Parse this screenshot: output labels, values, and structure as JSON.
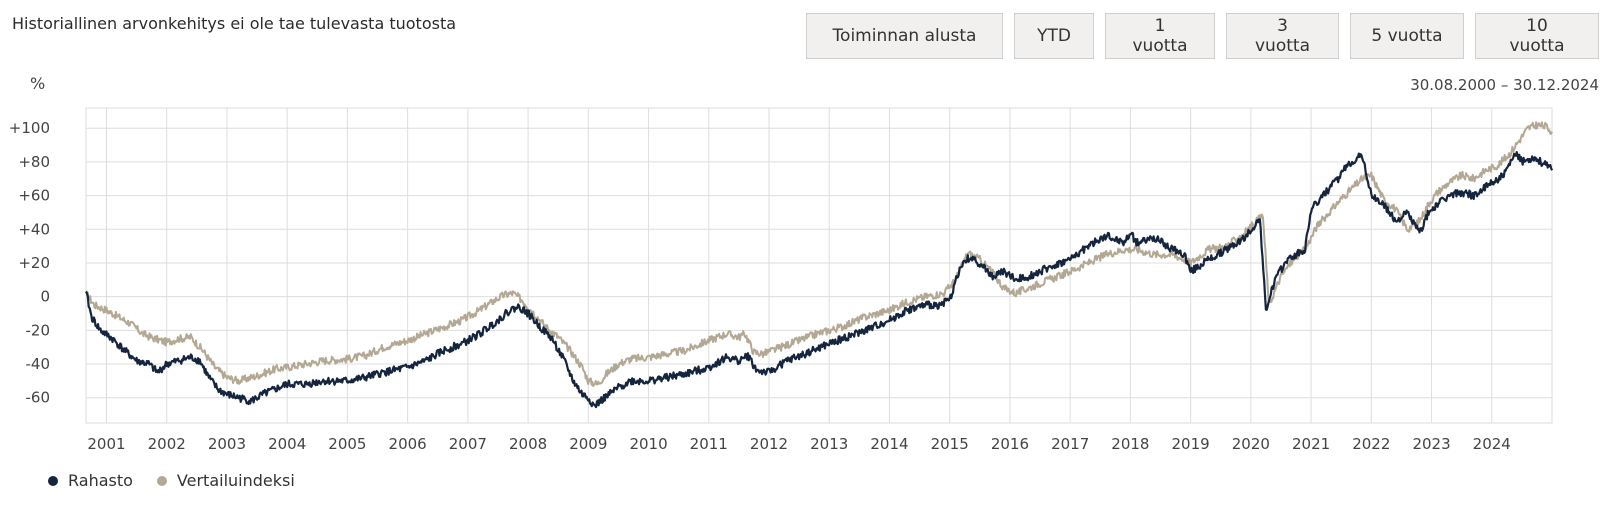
{
  "header": {
    "disclaimer": "Historiallinen arvonkehitys ei ole tae tulevasta tuotosta",
    "range_buttons": [
      "Toiminnan alusta",
      "YTD",
      "1 vuotta",
      "3 vuotta",
      "5 vuotta",
      "10 vuotta"
    ],
    "unit": "%",
    "date_range": "30.08.2000 – 30.12.2024"
  },
  "colors": {
    "fund": "#14253d",
    "benchmark": "#b3a893",
    "grid": "#dedede"
  },
  "chart_data": {
    "type": "line",
    "title": "",
    "xlabel": "",
    "ylabel": "%",
    "ylim": [
      -75,
      112
    ],
    "xlim": [
      2000.66,
      2025.0
    ],
    "yticks": [
      -60,
      -40,
      -20,
      0,
      20,
      40,
      60,
      80,
      100
    ],
    "ytick_labels": [
      "-60",
      "-40",
      "-20",
      "0",
      "+20",
      "+40",
      "+60",
      "+80",
      "+100"
    ],
    "xtick_labels": [
      "2001",
      "2002",
      "2003",
      "2004",
      "2005",
      "2006",
      "2007",
      "2008",
      "2009",
      "2010",
      "2011",
      "2012",
      "2013",
      "2014",
      "2015",
      "2016",
      "2017",
      "2018",
      "2019",
      "2020",
      "2021",
      "2022",
      "2023",
      "2024"
    ],
    "legend": [
      "Rahasto",
      "Vertailuindeksi"
    ],
    "legend_position": "bottom-left",
    "series": [
      {
        "name": "Rahasto",
        "x": [
          2000.66,
          2000.75,
          2000.9,
          2001.1,
          2001.3,
          2001.5,
          2001.7,
          2001.85,
          2002.0,
          2002.2,
          2002.4,
          2002.55,
          2002.7,
          2002.85,
          2003.0,
          2003.2,
          2003.4,
          2003.6,
          2003.8,
          2004.0,
          2004.3,
          2004.6,
          2005.0,
          2005.3,
          2005.6,
          2006.0,
          2006.3,
          2006.6,
          2006.9,
          2007.2,
          2007.5,
          2007.7,
          2007.85,
          2008.0,
          2008.2,
          2008.4,
          2008.6,
          2008.75,
          2008.9,
          2009.0,
          2009.1,
          2009.2,
          2009.35,
          2009.5,
          2009.7,
          2010.0,
          2010.3,
          2010.6,
          2011.0,
          2011.3,
          2011.5,
          2011.65,
          2011.8,
          2012.0,
          2012.3,
          2012.6,
          2013.0,
          2013.3,
          2013.6,
          2014.0,
          2014.3,
          2014.6,
          2014.8,
          2015.0,
          2015.15,
          2015.3,
          2015.5,
          2015.7,
          2015.9,
          2016.1,
          2016.3,
          2016.5,
          2016.7,
          2017.0,
          2017.3,
          2017.6,
          2017.9,
          2018.0,
          2018.1,
          2018.4,
          2018.7,
          2018.9,
          2019.0,
          2019.3,
          2019.6,
          2019.9,
          2020.05,
          2020.15,
          2020.25,
          2020.4,
          2020.6,
          2020.9,
          2021.0,
          2021.2,
          2021.45,
          2021.6,
          2021.75,
          2021.85,
          2022.0,
          2022.2,
          2022.4,
          2022.6,
          2022.8,
          2022.95,
          2023.1,
          2023.3,
          2023.5,
          2023.7,
          2023.9,
          2024.0,
          2024.2,
          2024.4,
          2024.5,
          2024.7,
          2024.9,
          2025.0
        ],
        "values": [
          3,
          -12,
          -20,
          -25,
          -32,
          -38,
          -40,
          -45,
          -40,
          -38,
          -36,
          -38,
          -48,
          -55,
          -58,
          -60,
          -62,
          -58,
          -55,
          -52,
          -52,
          -50,
          -50,
          -48,
          -45,
          -42,
          -38,
          -32,
          -28,
          -22,
          -14,
          -8,
          -6,
          -10,
          -18,
          -25,
          -38,
          -50,
          -58,
          -60,
          -65,
          -62,
          -58,
          -54,
          -50,
          -50,
          -48,
          -46,
          -42,
          -36,
          -38,
          -35,
          -44,
          -45,
          -38,
          -34,
          -28,
          -24,
          -20,
          -14,
          -8,
          -5,
          -5,
          -2,
          15,
          23,
          20,
          12,
          15,
          10,
          12,
          15,
          18,
          22,
          30,
          36,
          32,
          38,
          32,
          35,
          28,
          25,
          15,
          22,
          28,
          35,
          42,
          46,
          -8,
          10,
          22,
          28,
          52,
          60,
          70,
          78,
          82,
          84,
          60,
          55,
          45,
          50,
          38,
          50,
          55,
          60,
          62,
          60,
          65,
          68,
          72,
          85,
          80,
          83,
          78,
          75
        ],
        "color": "#14253d"
      },
      {
        "name": "Vertailuindeksi",
        "x": [
          2000.66,
          2000.8,
          2001.0,
          2001.2,
          2001.4,
          2001.6,
          2001.8,
          2002.0,
          2002.2,
          2002.4,
          2002.6,
          2002.8,
          2003.0,
          2003.2,
          2003.5,
          2003.8,
          2004.0,
          2004.3,
          2004.6,
          2005.0,
          2005.3,
          2005.6,
          2006.0,
          2006.3,
          2006.6,
          2006.9,
          2007.2,
          2007.45,
          2007.6,
          2007.75,
          2007.9,
          2008.1,
          2008.3,
          2008.5,
          2008.7,
          2008.9,
          2009.0,
          2009.15,
          2009.3,
          2009.5,
          2009.7,
          2010.0,
          2010.3,
          2010.6,
          2011.0,
          2011.3,
          2011.5,
          2011.6,
          2011.75,
          2011.9,
          2012.2,
          2012.5,
          2012.8,
          2013.2,
          2013.6,
          2014.0,
          2014.3,
          2014.6,
          2014.9,
          2015.1,
          2015.3,
          2015.5,
          2015.7,
          2015.9,
          2016.1,
          2016.3,
          2016.5,
          2016.8,
          2017.0,
          2017.3,
          2017.6,
          2017.9,
          2018.1,
          2018.4,
          2018.7,
          2018.9,
          2019.0,
          2019.3,
          2019.6,
          2019.9,
          2020.1,
          2020.2,
          2020.3,
          2020.5,
          2020.7,
          2020.9,
          2021.1,
          2021.3,
          2021.5,
          2021.7,
          2021.85,
          2022.0,
          2022.2,
          2022.4,
          2022.6,
          2022.8,
          2022.95,
          2023.1,
          2023.3,
          2023.5,
          2023.7,
          2023.9,
          2024.1,
          2024.3,
          2024.5,
          2024.6,
          2024.75,
          2024.9,
          2025.0
        ],
        "values": [
          2,
          -5,
          -8,
          -12,
          -16,
          -22,
          -25,
          -27,
          -25,
          -24,
          -32,
          -42,
          -48,
          -50,
          -47,
          -43,
          -42,
          -40,
          -38,
          -37,
          -35,
          -30,
          -26,
          -22,
          -18,
          -14,
          -8,
          -2,
          1,
          2,
          -2,
          -10,
          -18,
          -24,
          -32,
          -42,
          -50,
          -52,
          -46,
          -40,
          -37,
          -36,
          -34,
          -32,
          -26,
          -22,
          -24,
          -22,
          -33,
          -34,
          -30,
          -26,
          -22,
          -18,
          -12,
          -8,
          -3,
          0,
          2,
          10,
          26,
          22,
          15,
          5,
          2,
          5,
          8,
          12,
          15,
          20,
          25,
          28,
          28,
          25,
          25,
          22,
          20,
          28,
          30,
          38,
          45,
          48,
          -5,
          12,
          22,
          28,
          42,
          50,
          58,
          65,
          70,
          72,
          58,
          52,
          40,
          45,
          55,
          62,
          68,
          72,
          70,
          75,
          78,
          85,
          95,
          100,
          102,
          101,
          98
        ],
        "color": "#b3a893"
      }
    ]
  }
}
